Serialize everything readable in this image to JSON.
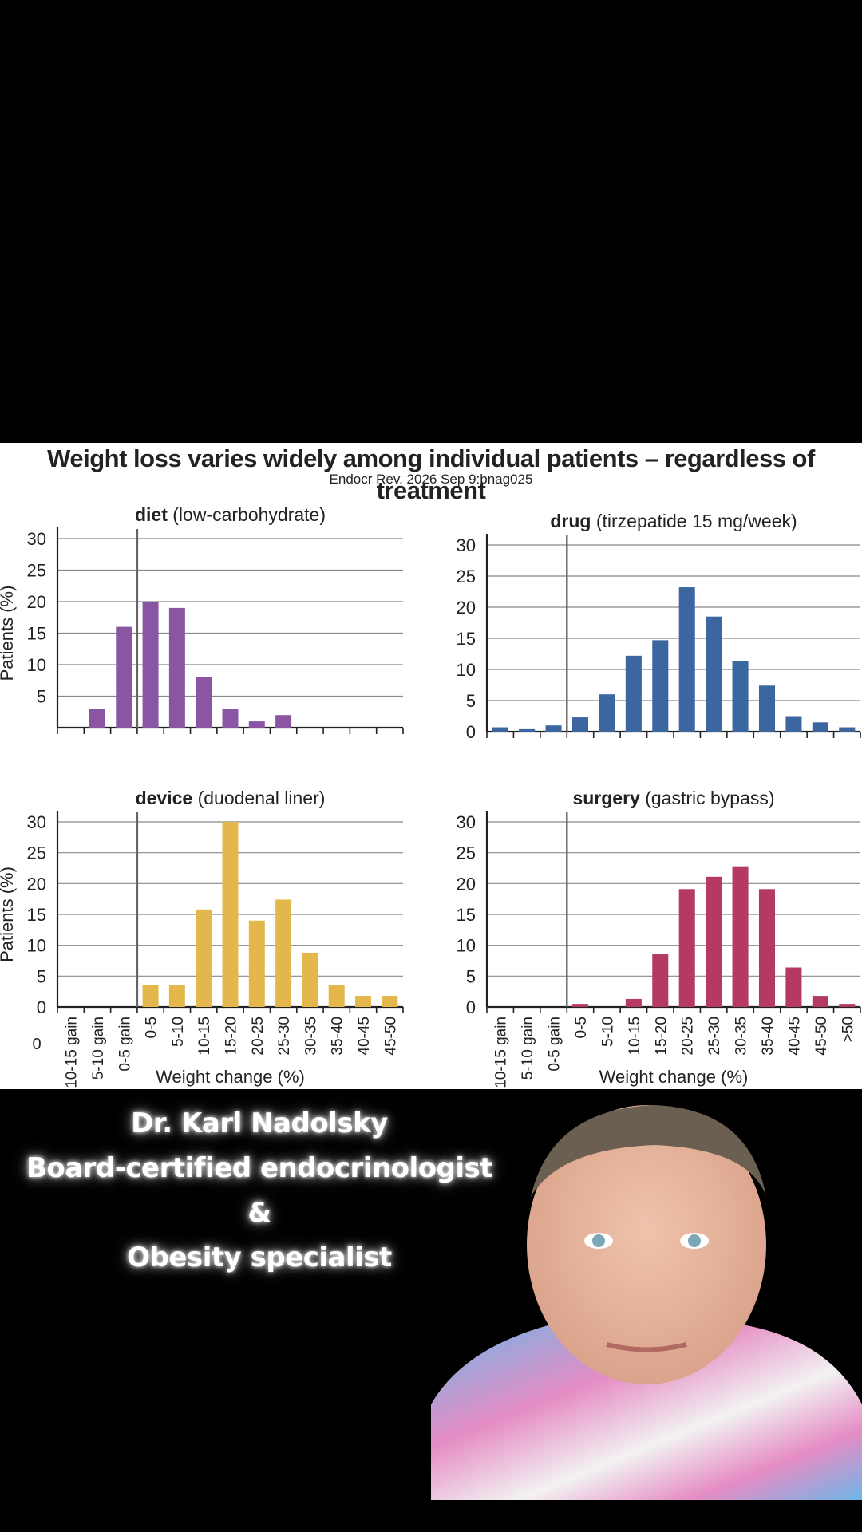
{
  "figure": {
    "title": "Weight loss varies widely among individual patients – regardless of treatment",
    "citation": "Endocr Rev. 2026 Sep 9:bnag025",
    "stray_label": "0"
  },
  "chart_data": [
    {
      "type": "bar",
      "title_bold": "diet",
      "title_rest": " (low-carbohydrate)",
      "ylabel": "Patients (%)",
      "xlabel": "",
      "ylim": [
        0,
        30
      ],
      "yticks": [
        5,
        10,
        15,
        20,
        25,
        30
      ],
      "color": "#8a55a3",
      "categories": [
        "10-15 gain",
        "5-10 gain",
        "0-5 gain",
        "0-5",
        "5-10",
        "10-15",
        "15-20",
        "20-25",
        "25-30",
        "30-35",
        "35-40",
        "40-45",
        "45-50"
      ],
      "values": [
        0,
        3,
        16,
        20,
        19,
        8,
        3,
        1,
        2,
        0,
        0,
        0,
        0
      ],
      "show_tick_labels": false,
      "grid": true
    },
    {
      "type": "bar",
      "title_bold": "drug",
      "title_rest": " (tirzepatide 15 mg/week)",
      "ylabel": "",
      "xlabel": "",
      "ylim": [
        0,
        30
      ],
      "yticks": [
        0,
        5,
        10,
        15,
        20,
        25,
        30
      ],
      "color": "#3b66a0",
      "categories": [
        "10-15 gain",
        "5-10 gain",
        "0-5 gain",
        "0-5",
        "5-10",
        "10-15",
        "15-20",
        "20-25",
        "25-30",
        "30-35",
        "35-40",
        "40-45",
        "45-50",
        ">50"
      ],
      "values": [
        0.7,
        0.4,
        1,
        2.3,
        6,
        12.2,
        14.7,
        23.2,
        18.5,
        11.4,
        7.4,
        2.5,
        1.5,
        0.7
      ],
      "show_tick_labels": false,
      "grid": true
    },
    {
      "type": "bar",
      "title_bold": "device",
      "title_rest": " (duodenal liner)",
      "ylabel": "Patients (%)",
      "xlabel": "Weight change (%)",
      "ylim": [
        0,
        30
      ],
      "yticks": [
        0,
        5,
        10,
        15,
        20,
        25,
        30
      ],
      "color": "#e3b74c",
      "categories": [
        "10-15 gain",
        "5-10 gain",
        "0-5 gain",
        "0-5",
        "5-10",
        "10-15",
        "15-20",
        "20-25",
        "25-30",
        "30-35",
        "35-40",
        "40-45",
        "45-50"
      ],
      "values": [
        0,
        0,
        0,
        3.5,
        3.5,
        15.8,
        30,
        14,
        17.4,
        8.8,
        3.5,
        1.8,
        1.8
      ],
      "show_tick_labels": true,
      "grid": true
    },
    {
      "type": "bar",
      "title_bold": "surgery",
      "title_rest": " (gastric bypass)",
      "ylabel": "",
      "xlabel": "Weight change (%)",
      "ylim": [
        0,
        30
      ],
      "yticks": [
        0,
        5,
        10,
        15,
        20,
        25,
        30
      ],
      "color": "#b53a63",
      "categories": [
        "10-15 gain",
        "5-10 gain",
        "0-5 gain",
        "0-5",
        "5-10",
        "10-15",
        "15-20",
        "20-25",
        "25-30",
        "30-35",
        "35-40",
        "40-45",
        "45-50",
        ">50"
      ],
      "values": [
        0,
        0,
        0,
        0.5,
        0,
        1.3,
        8.6,
        19.1,
        21.1,
        22.8,
        19.1,
        6.4,
        1.8,
        0.5
      ],
      "show_tick_labels": true,
      "grid": true
    }
  ],
  "overlay": {
    "lines": [
      "Dr. Karl Nadolsky",
      "Board-certified endocrinologist",
      "&",
      "Obesity specialist"
    ]
  },
  "presenter": {
    "description_icon": "presenter-photo",
    "shirt_colors": [
      "#6fb6e8",
      "#e58cc4",
      "#f2f2f2"
    ],
    "skin": "#e9b7a0",
    "hair": "#6b5f52"
  }
}
